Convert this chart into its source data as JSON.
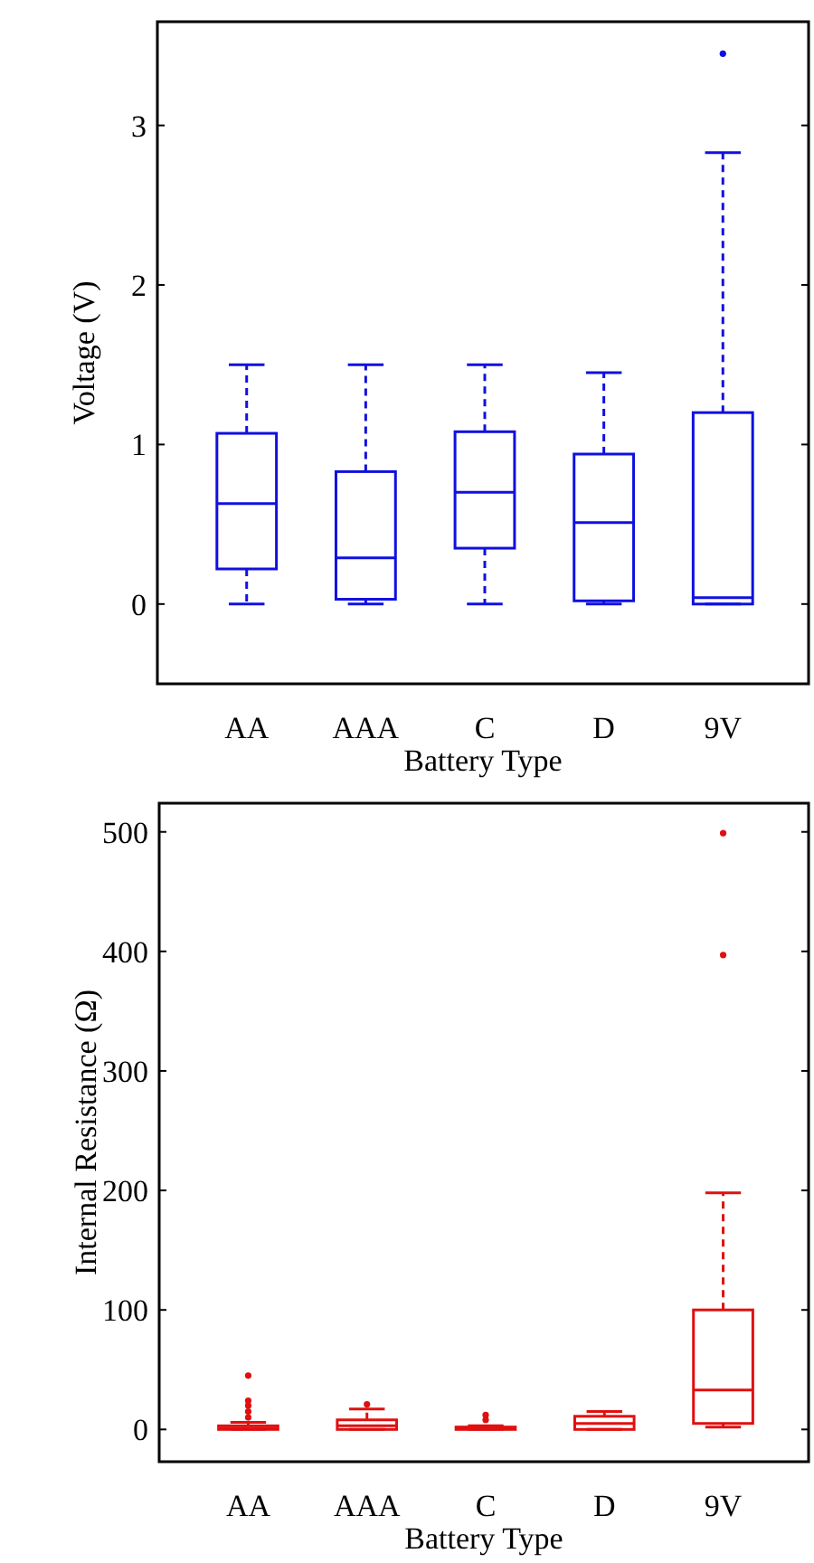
{
  "chart_data": [
    {
      "type": "box",
      "categories": [
        "AA",
        "AAA",
        "C",
        "D",
        "9V"
      ],
      "xlabel": "Battery Type",
      "ylabel": "Voltage (V)",
      "color": "#1010e0",
      "line_style": "dashed",
      "marker": "circle",
      "ylim": [
        -0.5,
        3.65
      ],
      "yticks": [
        0,
        1,
        2,
        3
      ],
      "boxes": [
        {
          "low": 0,
          "q1": 0.22,
          "median": 0.63,
          "q3": 1.07,
          "high": 1.5
        },
        {
          "low": 0,
          "q1": 0.03,
          "median": 0.29,
          "q3": 0.83,
          "high": 1.5
        },
        {
          "low": 0,
          "q1": 0.35,
          "median": 0.7,
          "q3": 1.08,
          "high": 1.5
        },
        {
          "low": 0,
          "q1": 0.02,
          "median": 0.51,
          "q3": 0.94,
          "high": 1.45
        },
        {
          "low": 0,
          "q1": 0,
          "median": 0.04,
          "q3": 1.2,
          "high": 2.83,
          "outliers": [
            3.45
          ]
        }
      ]
    },
    {
      "type": "box",
      "categories": [
        "AA",
        "AAA",
        "C",
        "D",
        "9V"
      ],
      "xlabel": "Battery Type",
      "ylabel": "Internal Resistance (Ω)",
      "color": "#e01010",
      "line_style": "dashed",
      "marker": "circle",
      "ylim": [
        -27,
        524
      ],
      "yticks": [
        0,
        100,
        200,
        300,
        400,
        500
      ],
      "boxes": [
        {
          "low": 0,
          "q1": 0,
          "median": 1,
          "q3": 3,
          "high": 6,
          "outliers": [
            10,
            15,
            20,
            24,
            45
          ]
        },
        {
          "low": 0,
          "q1": 0,
          "median": 3,
          "q3": 8,
          "high": 17,
          "outliers": [
            21
          ]
        },
        {
          "low": 0,
          "q1": 0,
          "median": 1,
          "q3": 2,
          "high": 3,
          "outliers": [
            8,
            12
          ]
        },
        {
          "low": 0,
          "q1": 0,
          "median": 5,
          "q3": 11,
          "high": 15
        },
        {
          "low": 2,
          "q1": 5,
          "median": 33,
          "q3": 100,
          "high": 198,
          "outliers": [
            397,
            499
          ]
        }
      ]
    }
  ]
}
